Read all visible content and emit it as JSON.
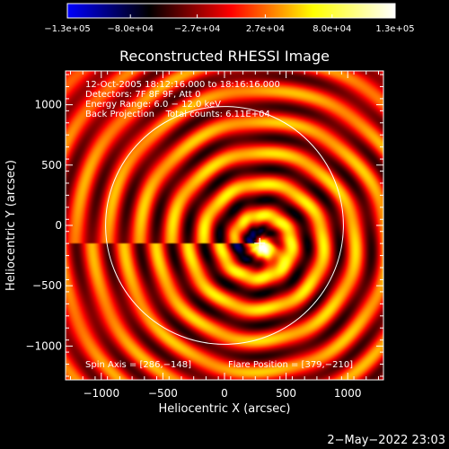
{
  "chart_data": {
    "type": "heatmap",
    "title": "Reconstructed RHESSI Image",
    "xlabel": "Heliocentric X (arcsec)",
    "ylabel": "Heliocentric Y (arcsec)",
    "xlim": [
      -1290,
      1290
    ],
    "ylim": [
      -1280,
      1280
    ],
    "x_ticks": [
      -1000,
      -500,
      0,
      500,
      1000
    ],
    "x_tick_labels": [
      "−1000",
      "−500",
      "0",
      "500",
      "1000"
    ],
    "y_ticks": [
      -1000,
      -500,
      0,
      500,
      1000
    ],
    "y_tick_labels": [
      "−1000",
      "−500",
      "0",
      "500",
      "1000"
    ],
    "colorbar": {
      "range": [
        -130000,
        130000
      ],
      "tick_labels": [
        "−1.3e+05",
        "−8.0e+04",
        "−2.7e+04",
        "2.7e+04",
        "8.0e+04",
        "1.3e+05"
      ],
      "tick_values": [
        -130000,
        -80000,
        -27000,
        27000,
        80000,
        130000
      ],
      "colormap": [
        "#0000ff",
        "#000000",
        "#ff0000",
        "#ffff00",
        "#ffffff"
      ]
    },
    "annotations": [
      "12-Oct-2005 18:12:16.000 to 18:16:16.000",
      "Detectors: 7F 8F 9F, Att 0",
      "Energy Range: 6.0 − 12.0 keV",
      "Back Projection    Total counts: 6.11E+04"
    ],
    "spin_axis_label": "Spin Axis = [286,−148]",
    "flare_position_label": "Flare Position = [379,−210]",
    "spin_axis": [
      286,
      -148
    ],
    "flare_position": [
      379,
      -210
    ],
    "solar_limb_center": [
      0,
      0
    ],
    "solar_limb_radius": 965,
    "source_peak": [
      360,
      -220
    ]
  },
  "footer": {
    "timestamp": "2−May−2022 23:03"
  }
}
